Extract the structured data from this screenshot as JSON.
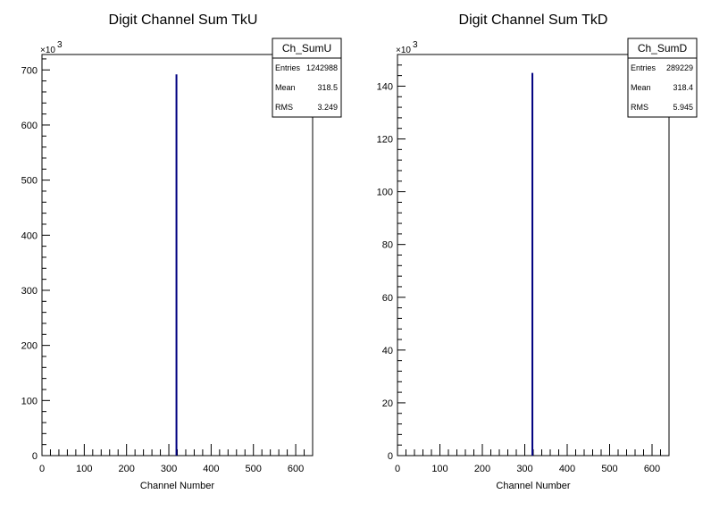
{
  "chart_data": [
    {
      "type": "bar",
      "title": "Digit Channel Sum TkU",
      "xlabel": "Channel Number",
      "ylabel": "",
      "xlim": [
        0,
        640
      ],
      "ylim": [
        0,
        728
      ],
      "y_multiplier": "×10",
      "y_multiplier_exp": "3",
      "x_ticks": [
        "0",
        "100",
        "200",
        "300",
        "400",
        "500",
        "600"
      ],
      "y_ticks": [
        "0",
        "100",
        "200",
        "300",
        "400",
        "500",
        "600",
        "700"
      ],
      "series": [
        {
          "x": 318,
          "value": 692
        }
      ],
      "line_color": "#000080",
      "stats": {
        "name": "Ch_SumU",
        "rows": [
          {
            "label": "Entries",
            "value": "1242988"
          },
          {
            "label": "Mean",
            "value": "318.5"
          },
          {
            "label": "RMS",
            "value": "3.249"
          }
        ]
      }
    },
    {
      "type": "bar",
      "title": "Digit Channel Sum TkD",
      "xlabel": "Channel Number",
      "ylabel": "",
      "xlim": [
        0,
        640
      ],
      "ylim": [
        0,
        152
      ],
      "y_multiplier": "×10",
      "y_multiplier_exp": "3",
      "x_ticks": [
        "0",
        "100",
        "200",
        "300",
        "400",
        "500",
        "600"
      ],
      "y_ticks": [
        "0",
        "20",
        "40",
        "60",
        "80",
        "100",
        "120",
        "140"
      ],
      "series": [
        {
          "x": 318,
          "value": 145
        }
      ],
      "line_color": "#000080",
      "stats": {
        "name": "Ch_SumD",
        "rows": [
          {
            "label": "Entries",
            "value": "289229"
          },
          {
            "label": "Mean",
            "value": "318.4"
          },
          {
            "label": "RMS",
            "value": "5.945"
          }
        ]
      }
    }
  ]
}
